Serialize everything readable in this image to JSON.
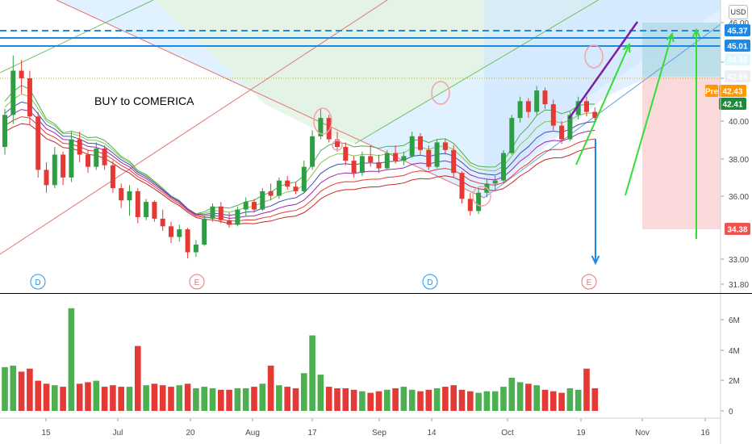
{
  "chart_data": {
    "type": "candlestick",
    "annotation": "BUY to COMERICA",
    "currency_label": "USD",
    "price_axis_ticks": [
      "46.00",
      "44.46",
      "42.58",
      "40.00",
      "38.00",
      "36.00",
      "33.00",
      "31.80"
    ],
    "volume_axis_ticks": [
      "6M",
      "4M",
      "2M",
      "0"
    ],
    "x_axis_ticks": [
      "15",
      "Jul",
      "20",
      "Aug",
      "17",
      "Sep",
      "14",
      "Oct",
      "19",
      "Nov",
      "16"
    ],
    "price_tags": [
      {
        "value": "45.37",
        "color": "#1e88e5"
      },
      {
        "value": "45.01",
        "color": "#1e88e5"
      },
      {
        "value": "44.46",
        "color": "#e0f7ff",
        "text_color": "#000000"
      },
      {
        "value": "42.58",
        "color": "#eceff1",
        "text_color": "#000000"
      },
      {
        "value": "Pre",
        "color": "#ff9800"
      },
      {
        "value": "42.43",
        "color": "#ff9800"
      },
      {
        "value": "42.41",
        "color": "#1b8a3a"
      },
      {
        "value": "34.38",
        "color": "#ef5350"
      }
    ],
    "event_markers": [
      {
        "label": "D",
        "color": "#2196f3"
      },
      {
        "label": "E",
        "color": "#e57373"
      },
      {
        "label": "D",
        "color": "#2196f3"
      },
      {
        "label": "E",
        "color": "#e57373"
      }
    ],
    "candles": [
      [
        40.5,
        43.0,
        40.0,
        42.6
      ],
      [
        42.6,
        46.5,
        42.0,
        45.5
      ],
      [
        45.5,
        46.2,
        44.0,
        45.0
      ],
      [
        45.0,
        45.5,
        42.0,
        42.5
      ],
      [
        42.5,
        42.8,
        38.5,
        39.0
      ],
      [
        39.0,
        39.5,
        37.5,
        38.0
      ],
      [
        38.0,
        40.5,
        37.8,
        40.0
      ],
      [
        40.0,
        40.2,
        38.0,
        38.5
      ],
      [
        38.5,
        41.5,
        38.2,
        41.0
      ],
      [
        41.0,
        41.5,
        39.5,
        40.0
      ],
      [
        40.0,
        40.3,
        38.8,
        39.2
      ],
      [
        39.2,
        40.8,
        39.0,
        40.4
      ],
      [
        40.4,
        40.6,
        39.0,
        39.3
      ],
      [
        39.3,
        39.6,
        37.5,
        37.8
      ],
      [
        37.8,
        38.1,
        36.5,
        37.0
      ],
      [
        37.0,
        38.0,
        36.0,
        37.6
      ],
      [
        37.6,
        37.8,
        35.5,
        35.9
      ],
      [
        35.9,
        37.1,
        35.7,
        36.9
      ],
      [
        36.9,
        37.0,
        35.6,
        35.8
      ],
      [
        35.8,
        36.4,
        35.0,
        35.3
      ],
      [
        35.3,
        35.6,
        34.2,
        34.6
      ],
      [
        34.6,
        35.4,
        34.3,
        35.1
      ],
      [
        35.1,
        35.2,
        33.2,
        33.6
      ],
      [
        33.6,
        34.4,
        33.3,
        34.1
      ],
      [
        34.1,
        36.0,
        34.0,
        35.8
      ],
      [
        35.8,
        36.8,
        35.6,
        36.6
      ],
      [
        36.6,
        36.9,
        35.5,
        35.7
      ],
      [
        35.7,
        36.2,
        35.2,
        35.4
      ],
      [
        35.4,
        36.6,
        35.3,
        36.4
      ],
      [
        36.4,
        37.2,
        36.0,
        36.9
      ],
      [
        36.9,
        37.1,
        36.2,
        36.4
      ],
      [
        36.4,
        37.8,
        36.3,
        37.6
      ],
      [
        37.6,
        38.1,
        37.0,
        37.3
      ],
      [
        37.3,
        38.5,
        37.1,
        38.3
      ],
      [
        38.3,
        38.6,
        37.7,
        37.9
      ],
      [
        37.9,
        38.2,
        37.4,
        37.6
      ],
      [
        37.6,
        39.6,
        37.5,
        39.2
      ],
      [
        39.2,
        41.6,
        39.0,
        41.2
      ],
      [
        41.2,
        43.0,
        41.0,
        42.4
      ],
      [
        42.4,
        42.6,
        40.8,
        41.0
      ],
      [
        41.0,
        41.5,
        40.2,
        40.5
      ],
      [
        40.5,
        40.8,
        39.3,
        39.6
      ],
      [
        39.6,
        39.9,
        38.5,
        38.8
      ],
      [
        38.8,
        40.2,
        38.6,
        39.9
      ],
      [
        39.9,
        40.6,
        39.2,
        39.5
      ],
      [
        39.5,
        40.0,
        38.8,
        39.1
      ],
      [
        39.1,
        40.3,
        39.0,
        40.1
      ],
      [
        40.1,
        40.6,
        39.4,
        39.6
      ],
      [
        39.6,
        40.2,
        39.3,
        39.9
      ],
      [
        39.9,
        41.5,
        39.8,
        41.2
      ],
      [
        41.2,
        41.4,
        40.0,
        40.3
      ],
      [
        40.3,
        40.6,
        39.0,
        39.2
      ],
      [
        39.2,
        41.0,
        39.1,
        40.8
      ],
      [
        40.8,
        41.0,
        40.0,
        40.3
      ],
      [
        40.3,
        40.6,
        38.5,
        38.8
      ],
      [
        38.8,
        38.9,
        36.8,
        37.1
      ],
      [
        37.1,
        37.5,
        36.0,
        36.3
      ],
      [
        36.3,
        37.8,
        36.1,
        37.5
      ],
      [
        37.5,
        38.4,
        37.2,
        38.1
      ],
      [
        38.1,
        38.6,
        37.6,
        38.3
      ],
      [
        38.3,
        40.3,
        38.1,
        40.1
      ],
      [
        40.1,
        42.6,
        40.0,
        42.4
      ],
      [
        42.4,
        43.8,
        42.1,
        43.5
      ],
      [
        43.5,
        43.7,
        42.4,
        42.8
      ],
      [
        42.8,
        44.5,
        42.6,
        44.2
      ],
      [
        44.2,
        44.4,
        43.0,
        43.3
      ],
      [
        43.3,
        43.6,
        41.6,
        41.9
      ],
      [
        41.9,
        42.2,
        40.7,
        41.0
      ],
      [
        41.0,
        42.8,
        40.9,
        42.6
      ],
      [
        42.6,
        43.8,
        42.3,
        43.5
      ],
      [
        43.5,
        43.8,
        42.5,
        42.8
      ],
      [
        42.8,
        43.1,
        42.2,
        42.4
      ]
    ],
    "volume": [
      2.9,
      3.0,
      2.6,
      2.8,
      2.0,
      1.8,
      1.7,
      1.6,
      6.8,
      1.8,
      1.9,
      2.0,
      1.6,
      1.7,
      1.6,
      1.6,
      4.3,
      1.7,
      1.8,
      1.7,
      1.6,
      1.7,
      1.8,
      1.5,
      1.6,
      1.5,
      1.4,
      1.4,
      1.5,
      1.5,
      1.6,
      1.8,
      3.0,
      1.7,
      1.6,
      1.5,
      2.5,
      5.0,
      2.4,
      1.6,
      1.5,
      1.5,
      1.4,
      1.3,
      1.2,
      1.3,
      1.4,
      1.5,
      1.6,
      1.4,
      1.3,
      1.4,
      1.5,
      1.6,
      1.7,
      1.4,
      1.3,
      1.2,
      1.3,
      1.3,
      1.6,
      2.2,
      1.9,
      1.8,
      1.7,
      1.4,
      1.3,
      1.2,
      1.5,
      1.4,
      2.8,
      1.5
    ],
    "note_on_values": "Daily OHLC prices in USD and daily volume in millions, estimated from the chart."
  }
}
